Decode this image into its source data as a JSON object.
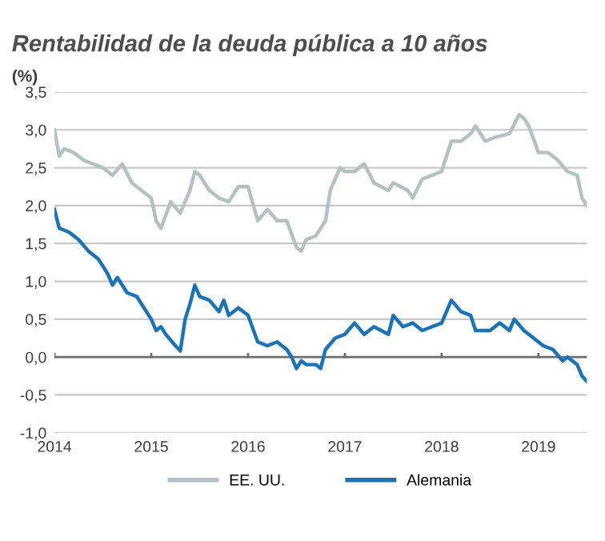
{
  "chart_data": {
    "type": "line",
    "title": "Rentabilidad de la deuda pública a 10 años",
    "ylabel": "(%)",
    "xlim": [
      2014,
      2019.5
    ],
    "xticks": [
      2014,
      2015,
      2016,
      2017,
      2018,
      2019
    ],
    "ylim": [
      -1.0,
      3.5
    ],
    "yticks": [
      {
        "value": -1.0,
        "label": "-1,0"
      },
      {
        "value": -0.5,
        "label": "-0,5"
      },
      {
        "value": 0.0,
        "label": "0,0"
      },
      {
        "value": 0.5,
        "label": "0,5"
      },
      {
        "value": 1.0,
        "label": "1,0"
      },
      {
        "value": 1.5,
        "label": "1,5"
      },
      {
        "value": 2.0,
        "label": "2,0"
      },
      {
        "value": 2.5,
        "label": "2,5"
      },
      {
        "value": 3.0,
        "label": "3,0"
      },
      {
        "value": 3.5,
        "label": "3,5"
      }
    ],
    "grid": "y",
    "legend": "bottom",
    "line_style": "solid",
    "marker": "none",
    "ref_lines": [
      {
        "axis": "y",
        "value": 0,
        "label": null,
        "color": "#6d6e71"
      }
    ],
    "series": [
      {
        "name": "EE. UU.",
        "color": "#b4c0c2",
        "x": [
          2014.0,
          2014.05,
          2014.1,
          2014.2,
          2014.3,
          2014.4,
          2014.5,
          2014.6,
          2014.7,
          2014.8,
          2014.9,
          2015.0,
          2015.05,
          2015.1,
          2015.2,
          2015.3,
          2015.4,
          2015.45,
          2015.5,
          2015.6,
          2015.7,
          2015.8,
          2015.9,
          2016.0,
          2016.1,
          2016.2,
          2016.3,
          2016.4,
          2016.5,
          2016.55,
          2016.6,
          2016.7,
          2016.8,
          2016.85,
          2016.95,
          2017.0,
          2017.1,
          2017.2,
          2017.3,
          2017.45,
          2017.5,
          2017.65,
          2017.7,
          2017.8,
          2017.9,
          2018.0,
          2018.1,
          2018.2,
          2018.3,
          2018.35,
          2018.45,
          2018.55,
          2018.7,
          2018.8,
          2018.85,
          2018.9,
          2019.0,
          2019.1,
          2019.2,
          2019.3,
          2019.4,
          2019.45,
          2019.5
        ],
        "values": [
          3.0,
          2.65,
          2.75,
          2.7,
          2.6,
          2.55,
          2.5,
          2.4,
          2.55,
          2.3,
          2.2,
          2.1,
          1.8,
          1.7,
          2.05,
          1.9,
          2.2,
          2.45,
          2.4,
          2.2,
          2.1,
          2.05,
          2.25,
          2.25,
          1.8,
          1.95,
          1.8,
          1.8,
          1.45,
          1.4,
          1.55,
          1.6,
          1.8,
          2.2,
          2.5,
          2.45,
          2.45,
          2.55,
          2.3,
          2.2,
          2.3,
          2.2,
          2.1,
          2.35,
          2.4,
          2.45,
          2.85,
          2.85,
          2.95,
          3.05,
          2.85,
          2.9,
          2.95,
          3.2,
          3.15,
          3.05,
          2.7,
          2.7,
          2.6,
          2.45,
          2.4,
          2.1,
          2.0
        ]
      },
      {
        "name": "Alemania",
        "color": "#1a73b8",
        "x": [
          2014.0,
          2014.05,
          2014.15,
          2014.25,
          2014.35,
          2014.45,
          2014.55,
          2014.6,
          2014.65,
          2014.75,
          2014.85,
          2014.95,
          2015.0,
          2015.05,
          2015.1,
          2015.15,
          2015.25,
          2015.3,
          2015.35,
          2015.4,
          2015.45,
          2015.5,
          2015.6,
          2015.7,
          2015.75,
          2015.8,
          2015.9,
          2016.0,
          2016.1,
          2016.2,
          2016.3,
          2016.4,
          2016.45,
          2016.5,
          2016.55,
          2016.6,
          2016.7,
          2016.75,
          2016.8,
          2016.9,
          2017.0,
          2017.1,
          2017.2,
          2017.3,
          2017.45,
          2017.5,
          2017.6,
          2017.7,
          2017.8,
          2017.9,
          2018.0,
          2018.1,
          2018.2,
          2018.3,
          2018.35,
          2018.5,
          2018.6,
          2018.7,
          2018.75,
          2018.85,
          2018.95,
          2019.05,
          2019.15,
          2019.25,
          2019.3,
          2019.4,
          2019.45,
          2019.5
        ],
        "values": [
          1.95,
          1.7,
          1.65,
          1.55,
          1.4,
          1.3,
          1.1,
          0.95,
          1.05,
          0.85,
          0.8,
          0.6,
          0.5,
          0.35,
          0.4,
          0.3,
          0.15,
          0.08,
          0.5,
          0.7,
          0.95,
          0.8,
          0.75,
          0.6,
          0.75,
          0.55,
          0.65,
          0.55,
          0.2,
          0.15,
          0.2,
          0.1,
          0.0,
          -0.15,
          -0.05,
          -0.1,
          -0.1,
          -0.15,
          0.1,
          0.25,
          0.3,
          0.45,
          0.3,
          0.4,
          0.3,
          0.55,
          0.4,
          0.45,
          0.35,
          0.4,
          0.45,
          0.75,
          0.6,
          0.55,
          0.35,
          0.35,
          0.45,
          0.35,
          0.5,
          0.35,
          0.25,
          0.15,
          0.1,
          -0.05,
          0.0,
          -0.1,
          -0.25,
          -0.32
        ]
      }
    ]
  }
}
